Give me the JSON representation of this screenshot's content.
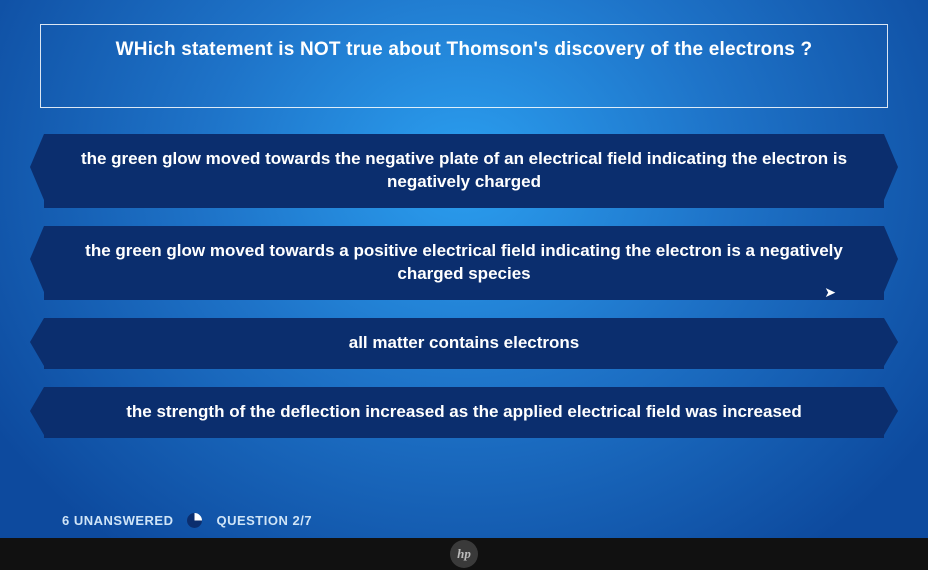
{
  "quiz": {
    "question": "WHich statement is NOT true about Thomson's discovery of the electrons ?",
    "answers": [
      "the green glow moved towards the negative plate of an electrical field indicating the electron is negatively charged",
      "the green glow moved towards a positive electrical field indicating the electron is a negatively charged species",
      "all matter contains electrons",
      "the strength of the deflection increased as the applied electrical field was increased"
    ]
  },
  "footer": {
    "unanswered_label": "6 UNANSWERED",
    "progress_label": "QUESTION 2/7"
  },
  "styling": {
    "bg_center": "#2b9ff0",
    "bg_mid": "#1e73c8",
    "bg_edge": "#0d4a9e",
    "answer_bg": "#0b2e6e",
    "text_color": "#ffffff",
    "footer_color": "#cfe4f7",
    "question_fontsize": 19,
    "answer_fontsize": 17,
    "footer_fontsize": 13
  },
  "device": {
    "logo_text": "hp"
  }
}
